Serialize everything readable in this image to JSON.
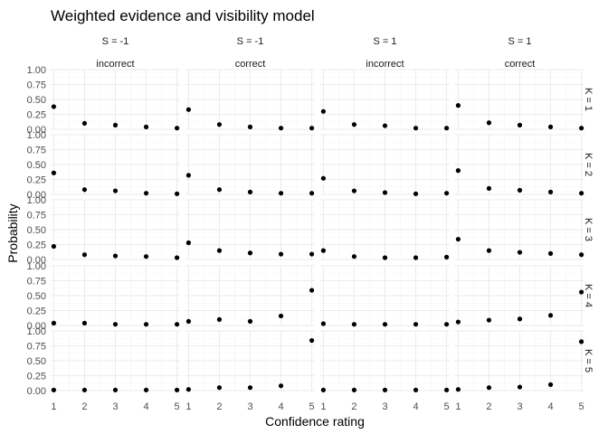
{
  "chart_data": {
    "type": "scatter",
    "title": "Weighted evidence and visibility model",
    "xlabel": "Confidence rating",
    "ylabel": "Probability",
    "x_ticks": [
      "1",
      "2",
      "3",
      "4",
      "5"
    ],
    "y_ticks": [
      "0.00",
      "0.25",
      "0.50",
      "0.75",
      "1.00"
    ],
    "xlim": [
      0.9,
      5.1
    ],
    "ylim": [
      0,
      1
    ],
    "grid": true,
    "legend": "none",
    "columns": [
      {
        "s_label": "S = -1",
        "correct_label": "incorrect"
      },
      {
        "s_label": "S = -1",
        "correct_label": "correct"
      },
      {
        "s_label": "S = 1",
        "correct_label": "incorrect"
      },
      {
        "s_label": "S = 1",
        "correct_label": "correct"
      }
    ],
    "rows": [
      {
        "label": "K = 1"
      },
      {
        "label": "K = 2"
      },
      {
        "label": "K = 3"
      },
      {
        "label": "K = 4"
      },
      {
        "label": "K = 5"
      }
    ],
    "x": [
      1,
      2,
      3,
      4,
      5
    ],
    "panels": [
      [
        [
          0.38,
          0.1,
          0.07,
          0.04,
          0.02
        ],
        [
          0.33,
          0.08,
          0.04,
          0.02,
          0.02
        ],
        [
          0.3,
          0.08,
          0.06,
          0.02,
          0.02
        ],
        [
          0.4,
          0.11,
          0.07,
          0.04,
          0.02
        ]
      ],
      [
        [
          0.36,
          0.08,
          0.06,
          0.02,
          0.01
        ],
        [
          0.32,
          0.08,
          0.04,
          0.02,
          0.02
        ],
        [
          0.27,
          0.06,
          0.03,
          0.01,
          0.02
        ],
        [
          0.4,
          0.1,
          0.07,
          0.04,
          0.02
        ]
      ],
      [
        [
          0.22,
          0.08,
          0.06,
          0.05,
          0.03
        ],
        [
          0.28,
          0.15,
          0.11,
          0.09,
          0.09
        ],
        [
          0.15,
          0.05,
          0.03,
          0.03,
          0.04
        ],
        [
          0.34,
          0.15,
          0.12,
          0.1,
          0.08
        ]
      ],
      [
        [
          0.04,
          0.04,
          0.02,
          0.02,
          0.02
        ],
        [
          0.07,
          0.1,
          0.07,
          0.16,
          0.59
        ],
        [
          0.03,
          0.02,
          0.02,
          0.02,
          0.02
        ],
        [
          0.06,
          0.09,
          0.11,
          0.17,
          0.56
        ]
      ],
      [
        [
          0.01,
          0.01,
          0.01,
          0.01,
          0.01
        ],
        [
          0.02,
          0.05,
          0.05,
          0.08,
          0.84
        ],
        [
          0.01,
          0.01,
          0.01,
          0.01,
          0.01
        ],
        [
          0.02,
          0.05,
          0.06,
          0.1,
          0.82
        ]
      ]
    ]
  }
}
